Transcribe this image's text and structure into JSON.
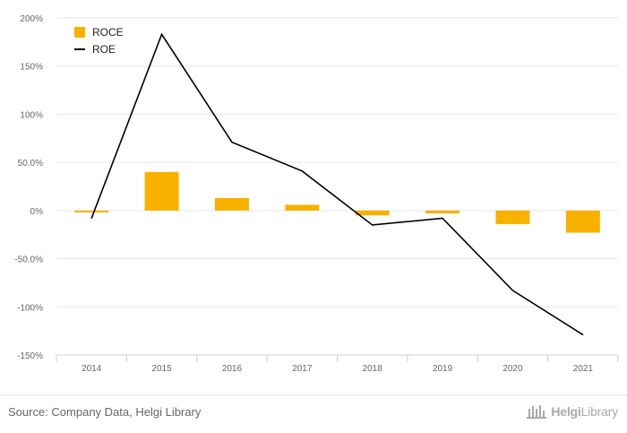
{
  "chart_data": {
    "type": "bar",
    "categories": [
      "2014",
      "2015",
      "2016",
      "2017",
      "2018",
      "2019",
      "2020",
      "2021"
    ],
    "series": [
      {
        "name": "ROCE",
        "kind": "bar",
        "color": "#F9B100",
        "values": [
          -2,
          40,
          13,
          6,
          -5,
          -3,
          -14,
          -23
        ]
      },
      {
        "name": "ROE",
        "kind": "line",
        "color": "#000000",
        "values": [
          -8,
          183,
          71,
          41,
          -15,
          -8,
          -83,
          -129
        ]
      }
    ],
    "yticks": [
      {
        "value": 200,
        "label": "200%"
      },
      {
        "value": 150,
        "label": "150%"
      },
      {
        "value": 100,
        "label": "100%"
      },
      {
        "value": 50,
        "label": "50.0%"
      },
      {
        "value": 0,
        "label": "0%"
      },
      {
        "value": -50,
        "label": "-50.0%"
      },
      {
        "value": -100,
        "label": "-100%"
      },
      {
        "value": -150,
        "label": "-150%"
      }
    ],
    "ylim": [
      -150,
      200
    ],
    "grid": true,
    "legend_position": "top-left"
  },
  "footer": {
    "source": "Source: Company Data, Helgi Library",
    "brand_part1": "Helgi",
    "brand_part2": "Library",
    "brand_color": "#a9a9a9"
  }
}
